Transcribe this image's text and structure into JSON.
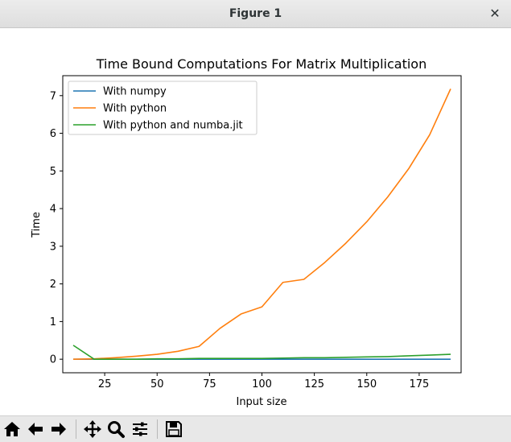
{
  "window": {
    "title": "Figure 1"
  },
  "toolbar": {
    "buttons": [
      {
        "name": "home-icon"
      },
      {
        "name": "back-arrow-icon"
      },
      {
        "name": "forward-arrow-icon"
      },
      {
        "name": "pan-icon"
      },
      {
        "name": "zoom-icon"
      },
      {
        "name": "subplots-icon"
      },
      {
        "name": "save-icon"
      }
    ]
  },
  "chart_data": {
    "type": "line",
    "title": "Time Bound Computations For Matrix Multiplication",
    "xlabel": "Input size",
    "ylabel": "Time",
    "xlim": [
      5,
      195
    ],
    "ylim": [
      -0.36,
      7.53
    ],
    "xticks": [
      25,
      50,
      75,
      100,
      125,
      150,
      175
    ],
    "yticks": [
      0,
      1,
      2,
      3,
      4,
      5,
      6,
      7
    ],
    "grid": false,
    "legend": "top-left",
    "x": [
      10,
      20,
      30,
      40,
      50,
      60,
      70,
      80,
      90,
      100,
      110,
      120,
      130,
      140,
      150,
      160,
      170,
      180,
      190
    ],
    "series": [
      {
        "name": "With numpy",
        "color": "#1f77b4",
        "values": [
          0.0,
          0.0,
          0.0,
          0.0,
          0.0,
          0.0,
          0.0,
          0.0,
          0.0,
          0.0,
          0.0,
          0.0,
          0.0,
          0.0,
          0.0,
          0.0,
          0.0,
          0.0,
          0.0
        ]
      },
      {
        "name": "With python",
        "color": "#ff7f0e",
        "values": [
          0.0,
          0.01,
          0.04,
          0.08,
          0.13,
          0.21,
          0.34,
          0.82,
          1.2,
          1.39,
          2.04,
          2.12,
          2.57,
          3.08,
          3.65,
          4.31,
          5.06,
          5.96,
          7.18
        ]
      },
      {
        "name": "With python and numba.jit",
        "color": "#2ca02c",
        "values": [
          0.37,
          0.0,
          0.0,
          0.0,
          0.01,
          0.01,
          0.02,
          0.02,
          0.02,
          0.02,
          0.03,
          0.04,
          0.04,
          0.05,
          0.06,
          0.07,
          0.09,
          0.11,
          0.13
        ]
      }
    ]
  }
}
